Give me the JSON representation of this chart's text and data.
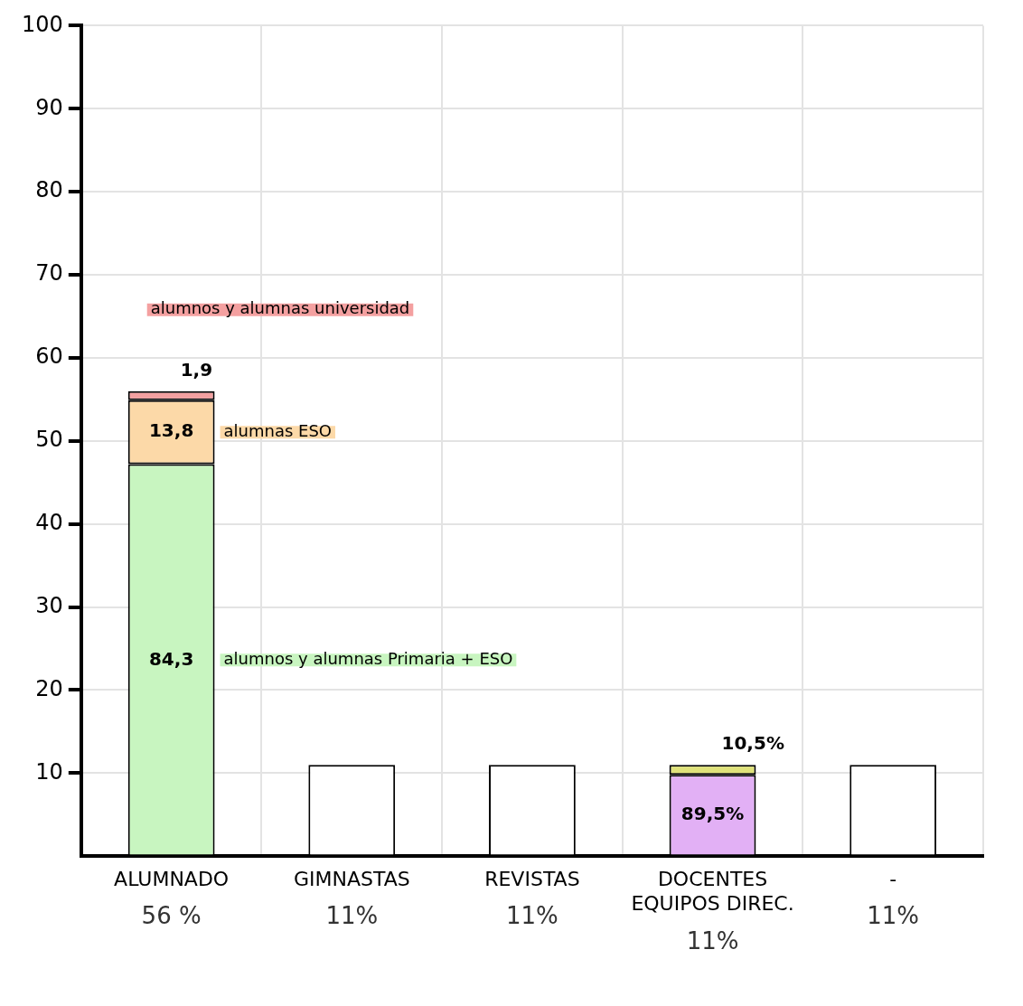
{
  "chart_data": {
    "type": "bar",
    "stacked": true,
    "categories": [
      "ALUMNADO",
      "GIMNASTAS",
      "REVISTAS",
      "DOCENTES EQUIPOS DIREC.",
      "-"
    ],
    "series": [
      {
        "name": "alumnos y alumnas Primaria + ESO",
        "color": "#c8f5c0",
        "values": [
          47.2,
          null,
          null,
          null,
          null
        ]
      },
      {
        "name": "alumnas ESO",
        "color": "#fcd9a8",
        "values": [
          7.7,
          null,
          null,
          null,
          null
        ]
      },
      {
        "name": "alumnos y alumnas universidad",
        "color": "#f4a0a0",
        "values": [
          1.1,
          null,
          null,
          null,
          null
        ]
      },
      {
        "color": "#ffffff",
        "values": [
          null,
          11,
          11,
          null,
          11
        ]
      },
      {
        "color": "#e2b0f5",
        "values": [
          null,
          null,
          null,
          9.8,
          null
        ]
      },
      {
        "color": "#dfe27a",
        "values": [
          null,
          null,
          null,
          1.2,
          null
        ]
      }
    ],
    "annotations": [
      "84,3",
      "13,8",
      "1,9",
      "89,5%",
      "10,5%"
    ],
    "totals": [
      "56 %",
      "11%",
      "11%",
      "11%",
      "11%"
    ],
    "ylim": [
      0,
      100
    ],
    "yticks": [
      10,
      20,
      30,
      40,
      50,
      60,
      70,
      80,
      90,
      100
    ],
    "grid": true,
    "legend": false
  }
}
